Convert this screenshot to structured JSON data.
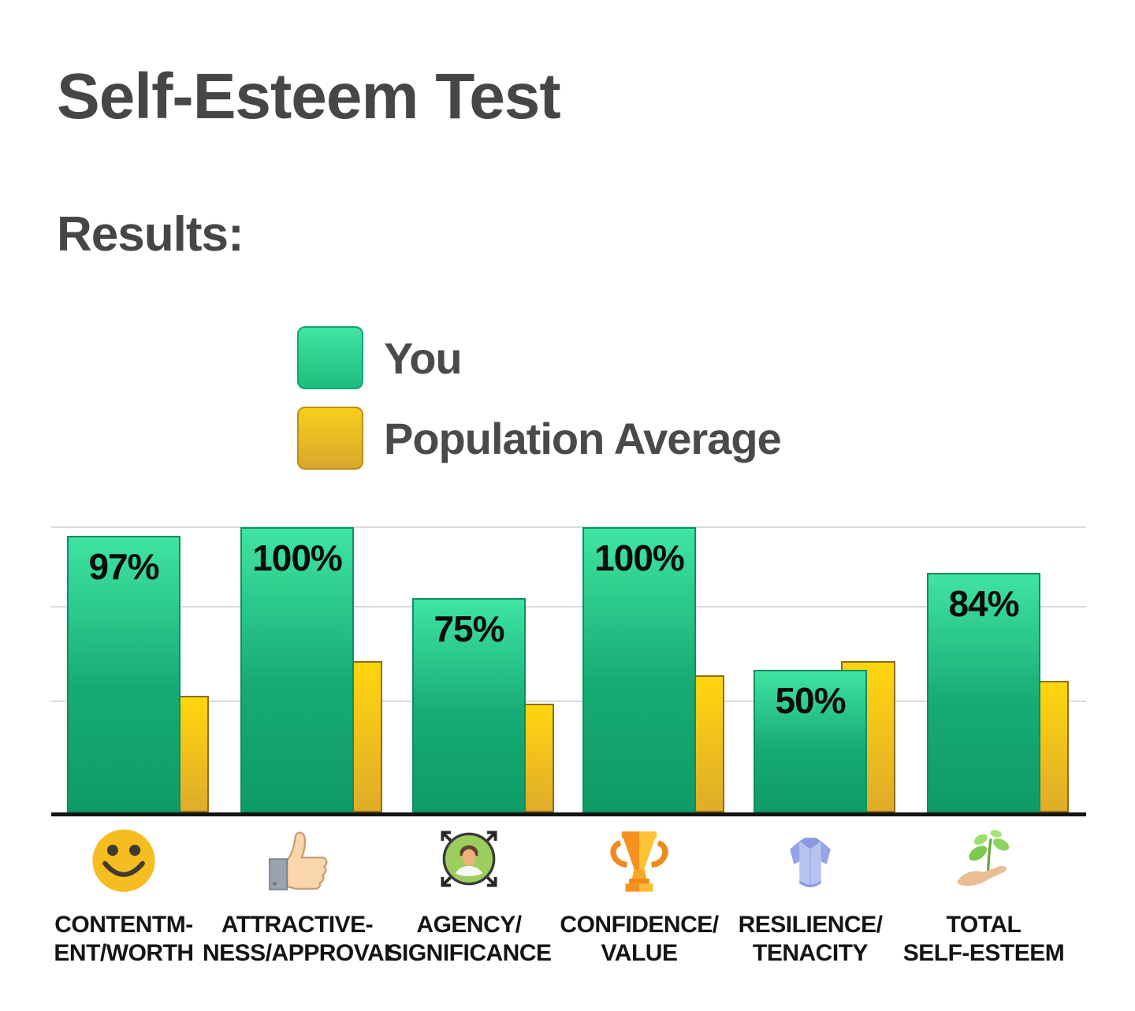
{
  "page": {
    "title": "Self-Esteem Test",
    "subtitle": "Results:"
  },
  "legend": [
    {
      "label": "You",
      "color": "#12A56F"
    },
    {
      "label": "Population Average",
      "color": "#EFC41F"
    }
  ],
  "colors": {
    "you_bar_top": "#3FE4A2",
    "you_bar_bottom": "#0E9C66",
    "average_bar_top": "#FFD60E",
    "average_bar_bottom": "#DFAC2A",
    "grid": "#DBDBDB",
    "axis": "#141414",
    "heading_text": "#464646",
    "label_text": "#141414"
  },
  "chart_data": {
    "type": "bar",
    "categories": [
      "Contentment/Worth",
      "Attractiveness/Approval",
      "Agency/Significance",
      "Confidence/Value",
      "Resilience/Tenacity",
      "Total Self-Esteem"
    ],
    "category_lines": [
      [
        "CONTENTM-",
        "ENT/WORTH"
      ],
      [
        "ATTRACTIVE-",
        "NESS/APPROVAL"
      ],
      [
        "AGENCY/",
        "SIGNIFICANCE"
      ],
      [
        "CONFIDENCE/",
        "VALUE"
      ],
      [
        "RESILIENCE/",
        "TENACITY"
      ],
      [
        "TOTAL",
        "SELF-ESTEEM"
      ]
    ],
    "icons": [
      "smiley-icon",
      "thumbs-up-icon",
      "expand-arrows-person-icon",
      "trophy-icon",
      "armor-shirt-icon",
      "plant-in-hand-icon"
    ],
    "series": [
      {
        "name": "You",
        "values": [
          97,
          100,
          75,
          100,
          50,
          84
        ]
      },
      {
        "name": "Population Average",
        "values": [
          41,
          53,
          38,
          48,
          53,
          46
        ]
      }
    ],
    "value_labels": [
      "97%",
      "100%",
      "75%",
      "100%",
      "50%",
      "84%"
    ],
    "ylim": [
      0,
      100
    ],
    "grid": true,
    "gridlines_pct": [
      100,
      72,
      39
    ],
    "legend_position": "top-left",
    "xlabel": "",
    "ylabel": ""
  }
}
